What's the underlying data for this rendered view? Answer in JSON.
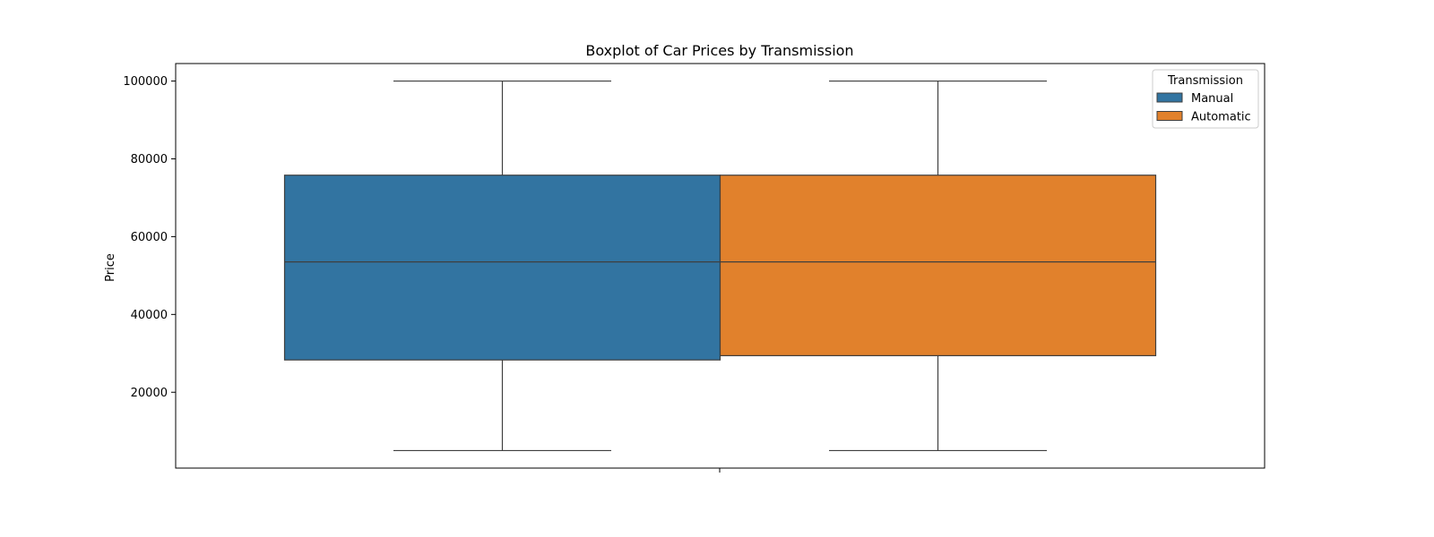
{
  "chart_data": {
    "type": "boxplot",
    "title": "Boxplot of Car Prices by Transmission",
    "xlabel": "",
    "ylabel": "Price",
    "ylim": [
      500,
      104500
    ],
    "yticks": [
      20000,
      40000,
      60000,
      80000,
      100000
    ],
    "yticklabels": [
      "20000",
      "40000",
      "60000",
      "80000",
      "100000"
    ],
    "grid": false,
    "legend": {
      "title": "Transmission",
      "placement": "top-right",
      "entries": [
        "Manual",
        "Automatic"
      ]
    },
    "series": [
      {
        "name": "Manual",
        "color": "#3274a1",
        "whisker_low": 5000,
        "q1": 28300,
        "median": 53500,
        "q3": 75800,
        "whisker_high": 100000
      },
      {
        "name": "Automatic",
        "color": "#e1812c",
        "whisker_low": 5000,
        "q1": 29400,
        "median": 53500,
        "q3": 75800,
        "whisker_high": 100000
      }
    ]
  }
}
